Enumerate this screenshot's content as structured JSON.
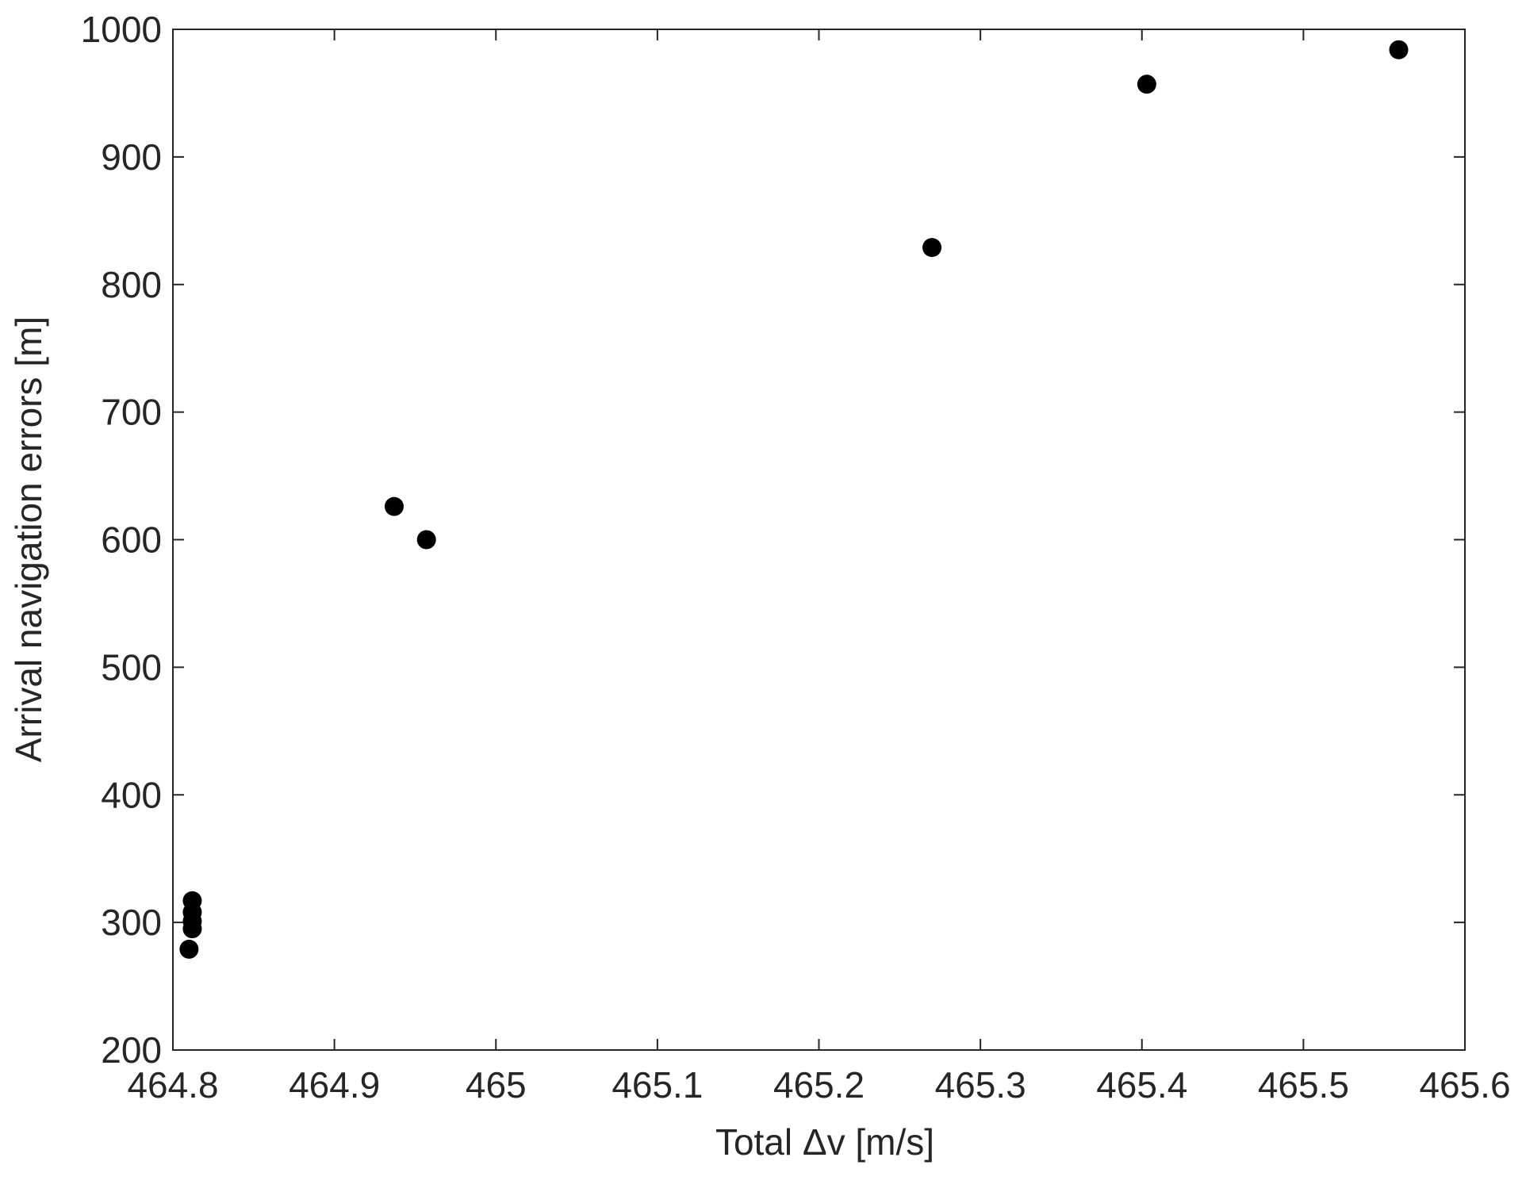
{
  "chart_data": {
    "type": "scatter",
    "xlabel": "Total Δv [m/s]",
    "ylabel": "Arrival navigation errors [m]",
    "x": [
      464.81,
      464.812,
      464.812,
      464.812,
      464.812,
      464.937,
      464.957,
      465.27,
      465.403,
      465.559
    ],
    "values": [
      279,
      317,
      308,
      301,
      295,
      626,
      600,
      829,
      957,
      984
    ],
    "color": "#000000",
    "xlim": [
      464.8,
      465.6
    ],
    "xticks": [
      464.8,
      464.9,
      465,
      465.1,
      465.2,
      465.3,
      465.4,
      465.5,
      465.6
    ],
    "ylim": [
      200,
      1000
    ],
    "yticks": [
      200,
      300,
      400,
      500,
      600,
      700,
      800,
      900,
      1000
    ],
    "grid": false
  }
}
